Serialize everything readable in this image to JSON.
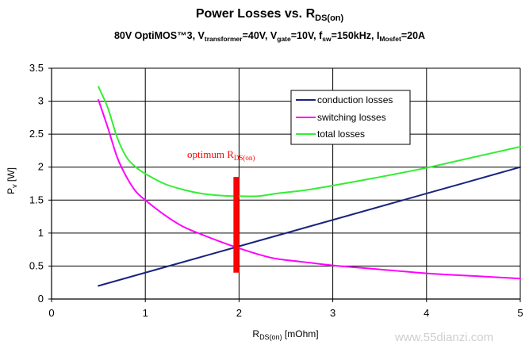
{
  "chart_data": {
    "type": "line",
    "title": {
      "main": "Power Losses vs. R",
      "main_sub": "DS(on)"
    },
    "subtitle": {
      "t1": "80V OptiMOS™3, V",
      "s1": "transformer",
      "t2": "=40V, V",
      "s2": "gate",
      "t3": "=10V, f",
      "s3": "sw",
      "t4": "=150kHz, I",
      "s4": "Mosfet",
      "t5": "=20A"
    },
    "ylabel": {
      "main": "P",
      "sub": "v",
      "rest": " [W]"
    },
    "xlabel": {
      "main": "R",
      "sub": "DS(on)",
      "rest": " [mOhm]"
    },
    "xlim": [
      0,
      5
    ],
    "ylim": [
      0,
      3.5
    ],
    "x_ticks": [
      "0",
      "1",
      "2",
      "3",
      "4",
      "5"
    ],
    "y_ticks": [
      "0",
      "0.5",
      "1",
      "1.5",
      "2",
      "2.5",
      "3",
      "3.5"
    ],
    "grid": true,
    "legend_position": "top-right",
    "series": [
      {
        "name": "conduction losses",
        "color": "#1a237e",
        "points": [
          [
            0.5,
            0.2
          ],
          [
            1,
            0.4
          ],
          [
            2,
            0.8
          ],
          [
            3,
            1.2
          ],
          [
            4,
            1.6
          ],
          [
            5,
            2.0
          ]
        ]
      },
      {
        "name": "switching losses",
        "color": "#ff00ff",
        "points": [
          [
            0.5,
            3.02
          ],
          [
            0.6,
            2.6
          ],
          [
            0.7,
            2.15
          ],
          [
            0.8,
            1.85
          ],
          [
            0.9,
            1.63
          ],
          [
            1,
            1.5
          ],
          [
            1.2,
            1.28
          ],
          [
            1.4,
            1.1
          ],
          [
            1.6,
            0.98
          ],
          [
            1.8,
            0.87
          ],
          [
            2,
            0.77
          ],
          [
            2.2,
            0.68
          ],
          [
            2.4,
            0.61
          ],
          [
            2.7,
            0.56
          ],
          [
            3,
            0.51
          ],
          [
            3.5,
            0.45
          ],
          [
            4,
            0.39
          ],
          [
            4.5,
            0.35
          ],
          [
            5,
            0.31
          ]
        ]
      },
      {
        "name": "total losses",
        "color": "#33ee33",
        "points": [
          [
            0.5,
            3.22
          ],
          [
            0.6,
            2.9
          ],
          [
            0.7,
            2.45
          ],
          [
            0.8,
            2.15
          ],
          [
            0.9,
            2.0
          ],
          [
            1,
            1.9
          ],
          [
            1.2,
            1.75
          ],
          [
            1.4,
            1.66
          ],
          [
            1.6,
            1.6
          ],
          [
            1.8,
            1.57
          ],
          [
            2,
            1.56
          ],
          [
            2.2,
            1.56
          ],
          [
            2.4,
            1.6
          ],
          [
            2.7,
            1.65
          ],
          [
            3,
            1.72
          ],
          [
            3.5,
            1.85
          ],
          [
            4,
            1.99
          ],
          [
            4.5,
            2.15
          ],
          [
            5,
            2.31
          ]
        ]
      }
    ],
    "annotation": {
      "text_main": "optimum R",
      "text_sub": "DS(on)",
      "color": "#ff0000",
      "marker": {
        "x": 1.97,
        "y_from": 0.4,
        "y_to": 1.85
      }
    }
  },
  "watermark": "www.55dianzi.com"
}
